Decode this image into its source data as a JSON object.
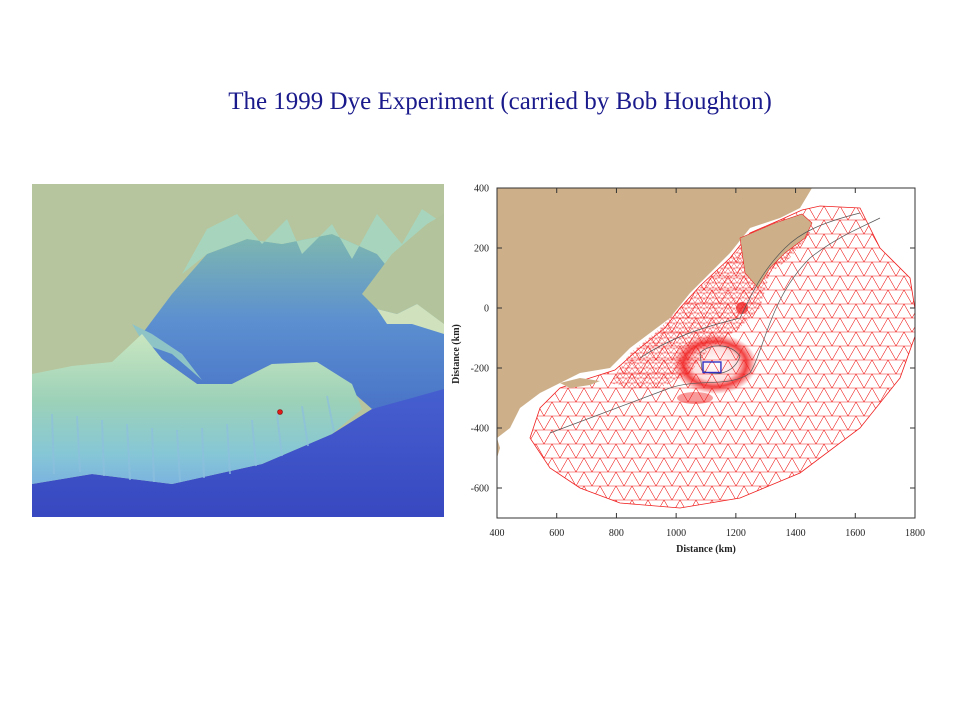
{
  "title": "The 1999 Dye Experiment (carried by Bob Houghton)",
  "colors": {
    "title": "#1a1a8c",
    "land": "#cdb08a",
    "mesh": "#f02020",
    "bathy_sky": "#b5c49c",
    "bathy_deep": "#3a50c8",
    "bathy_shelf": "#a9d7b3",
    "dye_site_box": "#3030c0",
    "dye_release_dot": "#e01818"
  },
  "bathymetry_view": {
    "dye_release_marker": "red-dot"
  },
  "mesh_map": {
    "xlabel": "Distance (km)",
    "ylabel": "Distance (km)",
    "x_ticks": [
      "400",
      "600",
      "800",
      "1000",
      "1200",
      "1400",
      "1600",
      "1800"
    ],
    "y_ticks": [
      "400",
      "200",
      "0",
      "-200",
      "-400",
      "-600"
    ],
    "xlim": [
      400,
      1800
    ],
    "ylim": [
      -700,
      400
    ],
    "dye_box": {
      "x0": 1090,
      "x1": 1150,
      "y0": -215,
      "y1": -180
    }
  }
}
